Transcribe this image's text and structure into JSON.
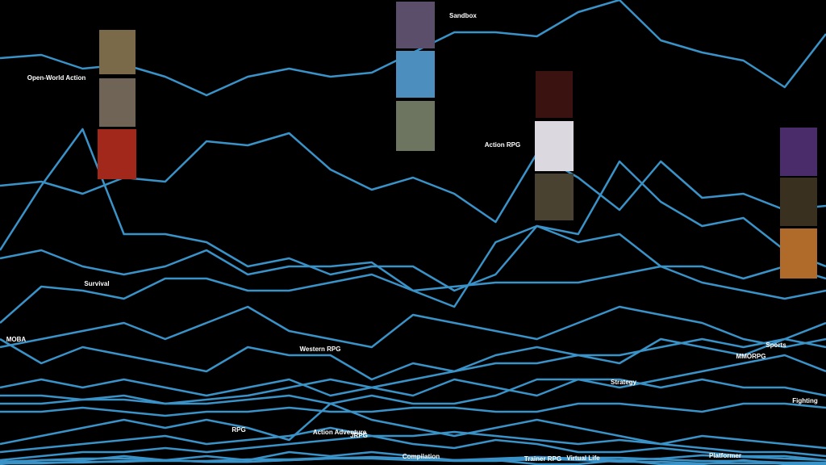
{
  "chart_data": {
    "type": "line",
    "categories": [
      null,
      null,
      null,
      null,
      null,
      null,
      null,
      null,
      null,
      null,
      null,
      null,
      null,
      null,
      null,
      null,
      null,
      null,
      null,
      null,
      null
    ],
    "ylim": [
      0,
      576
    ],
    "series": [
      {
        "name": "Sandbox",
        "color": "#3a93c8",
        "values": [
          504,
          508,
          491,
          496,
          481,
          458,
          481,
          491,
          481,
          486,
          511,
          536,
          536,
          531,
          561,
          576,
          526,
          511,
          501,
          468,
          534
        ]
      },
      {
        "name": "Action RPG",
        "color": "#3a93c8",
        "values": [
          346,
          351,
          336,
          356,
          351,
          401,
          396,
          411,
          366,
          341,
          356,
          336,
          301,
          386,
          356,
          316,
          376,
          331,
          336,
          316,
          321
        ]
      },
      {
        "name": "Open-World Action",
        "color": "#3a93c8",
        "values": [
          266,
          346,
          416,
          286,
          286,
          276,
          246,
          256,
          236,
          246,
          246,
          216,
          236,
          296,
          276,
          286,
          246,
          226,
          216,
          206,
          216
        ]
      },
      {
        "name": "Survival",
        "color": "#3a93c8",
        "values": [
          176,
          221,
          216,
          206,
          231,
          231,
          216,
          216,
          226,
          236,
          216,
          221,
          226,
          226,
          226,
          236,
          246,
          246,
          231,
          246,
          231
        ]
      },
      {
        "color": "#3a93c8",
        "values": [
          256,
          266,
          246,
          236,
          246,
          266,
          236,
          246,
          246,
          251,
          216,
          196,
          276,
          296,
          286,
          376,
          326,
          296,
          306,
          266,
          246
        ]
      },
      {
        "name": "MOBA",
        "color": "#3a93c8",
        "values": [
          146,
          156,
          166,
          176,
          156,
          176,
          196,
          166,
          156,
          146,
          186,
          176,
          166,
          156,
          176,
          196,
          186,
          176,
          156,
          146,
          156
        ]
      },
      {
        "name": "Western RPG",
        "color": "#3a93c8",
        "values": [
          156,
          126,
          146,
          136,
          126,
          116,
          146,
          136,
          136,
          106,
          126,
          116,
          136,
          146,
          136,
          126,
          156,
          146,
          136,
          156,
          146
        ]
      },
      {
        "name": "Sports",
        "color": "#3a93c8",
        "values": [
          96,
          106,
          96,
          106,
          96,
          86,
          96,
          106,
          86,
          96,
          106,
          116,
          126,
          126,
          136,
          136,
          146,
          156,
          146,
          156,
          176
        ]
      },
      {
        "name": "MMORPG",
        "color": "#3a93c8",
        "values": [
          86,
          86,
          81,
          86,
          76,
          81,
          86,
          96,
          106,
          96,
          86,
          106,
          96,
          86,
          106,
          96,
          106,
          116,
          126,
          136,
          116
        ]
      },
      {
        "name": "Strategy",
        "color": "#3a93c8",
        "values": [
          76,
          76,
          81,
          81,
          76,
          76,
          81,
          86,
          76,
          86,
          76,
          76,
          86,
          106,
          106,
          106,
          96,
          106,
          96,
          96,
          86
        ]
      },
      {
        "name": "Fighting",
        "color": "#3a93c8",
        "values": [
          66,
          66,
          71,
          66,
          61,
          66,
          66,
          71,
          66,
          66,
          71,
          71,
          66,
          66,
          76,
          76,
          71,
          66,
          76,
          76,
          71
        ]
      },
      {
        "name": "RPG",
        "color": "#3a93c8",
        "values": [
          26,
          36,
          46,
          56,
          46,
          56,
          46,
          31,
          76,
          56,
          46,
          36,
          46,
          56,
          46,
          36,
          26,
          36,
          31,
          26,
          21
        ]
      },
      {
        "name": "Action Adventure",
        "color": "#3a93c8",
        "values": [
          16,
          21,
          26,
          31,
          36,
          26,
          31,
          36,
          46,
          36,
          36,
          41,
          36,
          31,
          26,
          31,
          26,
          21,
          16,
          16,
          11
        ]
      },
      {
        "name": "JRPG",
        "color": "#3a93c8",
        "values": [
          6,
          11,
          16,
          16,
          21,
          16,
          21,
          26,
          31,
          36,
          26,
          21,
          31,
          26,
          16,
          16,
          21,
          16,
          11,
          11,
          6
        ]
      },
      {
        "name": "Compilation",
        "color": "#3a93c8",
        "values": [
          1,
          6,
          6,
          11,
          6,
          11,
          6,
          16,
          11,
          16,
          11,
          6,
          6,
          1,
          1,
          6,
          1,
          1,
          6,
          1,
          1
        ]
      },
      {
        "name": "Trainer RPG",
        "color": "#3a93c8",
        "values": [
          2,
          2,
          4,
          4,
          6,
          4,
          4,
          6,
          8,
          10,
          8,
          6,
          6,
          8,
          6,
          4,
          4,
          2,
          2,
          2,
          2
        ]
      },
      {
        "name": "Virtual Life",
        "color": "#3a93c8",
        "values": [
          3,
          3,
          3,
          5,
          5,
          5,
          7,
          7,
          9,
          9,
          7,
          5,
          5,
          7,
          9,
          9,
          7,
          5,
          5,
          3,
          3
        ]
      },
      {
        "name": "Platformer",
        "color": "#3a93c8",
        "values": [
          4,
          6,
          8,
          8,
          6,
          4,
          4,
          6,
          8,
          8,
          6,
          6,
          8,
          10,
          8,
          6,
          8,
          12,
          10,
          8,
          6
        ]
      }
    ]
  }
}
